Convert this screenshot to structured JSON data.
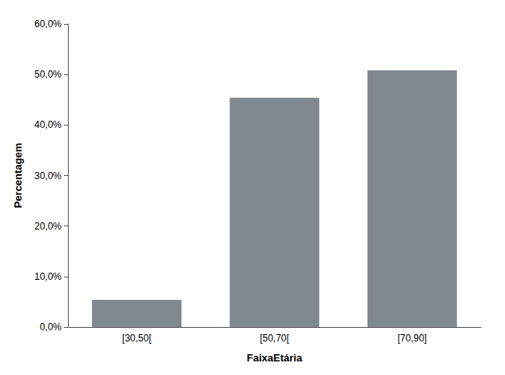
{
  "chart_data": {
    "type": "bar",
    "xlabel": "FaixaEtária",
    "ylabel": "Percentagem",
    "categories": [
      "[30,50[",
      "[50,70[",
      "[70,90]"
    ],
    "values": [
      0.054,
      0.454,
      0.508
    ],
    "color": "#808890",
    "ylim": [
      0,
      0.6
    ],
    "yticks": [
      {
        "value": 0.0,
        "label": "0,0%"
      },
      {
        "value": 0.1,
        "label": "10,0%"
      },
      {
        "value": 0.2,
        "label": "20,0%"
      },
      {
        "value": 0.3,
        "label": "30,0%"
      },
      {
        "value": 0.4,
        "label": "40,0%"
      },
      {
        "value": 0.5,
        "label": "50,0%"
      },
      {
        "value": 0.6,
        "label": "60,0%"
      }
    ],
    "grid": false
  }
}
